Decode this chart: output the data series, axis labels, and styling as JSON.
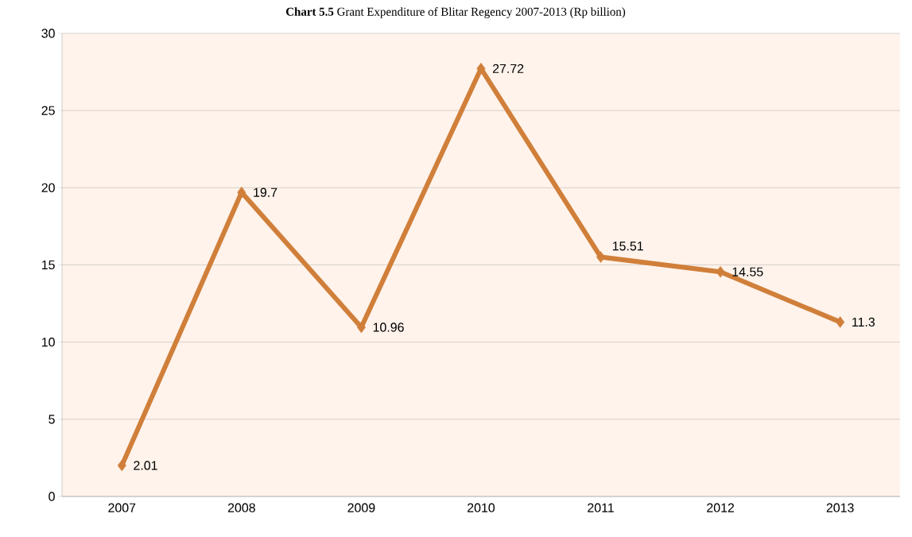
{
  "chart_data": {
    "type": "line",
    "title": "**Chart 5.5** Grant Expenditure of Blitar Regency 2007-2013 (Rp billion)",
    "categories": [
      "2007",
      "2008",
      "2009",
      "2010",
      "2011",
      "2012",
      "2013"
    ],
    "series": [
      {
        "color": "#d07f3a",
        "values": [
          2.01,
          19.7,
          10.96,
          27.72,
          15.51,
          14.55,
          11.3
        ]
      }
    ],
    "ylim": [
      0,
      30
    ],
    "yticks": [
      0,
      5,
      10,
      15,
      20,
      25,
      30
    ],
    "grid": "y",
    "marker": "diamond",
    "data_labels": true
  }
}
